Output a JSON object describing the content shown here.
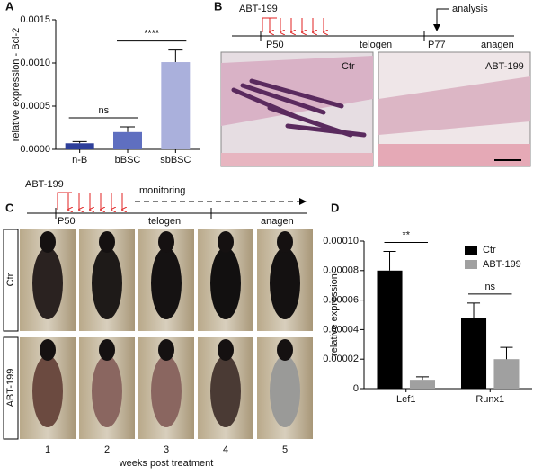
{
  "panel_labels": [
    "A",
    "B",
    "C",
    "D"
  ],
  "chart_data": [
    {
      "type": "bar",
      "ylabel": "relative expression - Bcl-2",
      "categories": [
        "n-B",
        "bBSC",
        "sbBSC"
      ],
      "values": [
        7e-05,
        0.0002,
        0.00101
      ],
      "errors": [
        2e-05,
        6e-05,
        0.00014
      ],
      "colors": [
        "#2e3f9a",
        "#5f6fc0",
        "#aab0dc"
      ],
      "ylim": [
        0,
        0.0015
      ],
      "yticks": [
        {
          "value": 0,
          "label": "0.0000"
        },
        {
          "value": 0.0005,
          "label": "0.0005"
        },
        {
          "value": 0.001,
          "label": "0.0010"
        },
        {
          "value": 0.0015,
          "label": "0.0015"
        }
      ],
      "annotations": [
        {
          "text": "ns",
          "pair": [
            "n-B",
            "bBSC"
          ]
        },
        {
          "text": "****",
          "pair": [
            "bBSC",
            "sbBSC"
          ]
        }
      ]
    },
    {
      "type": "bar",
      "ylabel": "relative expression",
      "categories": [
        "Lef1",
        "Runx1"
      ],
      "series": [
        {
          "name": "Ctr",
          "color": "#000000",
          "values": [
            8e-05,
            4.8e-05
          ],
          "errors": [
            1.3e-05,
            1e-05
          ]
        },
        {
          "name": "ABT-199",
          "color": "#a0a0a0",
          "values": [
            6e-06,
            2e-05
          ],
          "errors": [
            2e-06,
            8e-06
          ]
        }
      ],
      "ylim": [
        0,
        0.0001
      ],
      "yticks": [
        0,
        2e-05,
        4e-05,
        6e-05,
        8e-05,
        {
          "value": 0.0001,
          "label": "0.00010"
        }
      ],
      "legend": "upper right",
      "annotations": [
        {
          "text": "**",
          "category": "Lef1"
        },
        {
          "text": "ns",
          "category": "Runx1"
        }
      ]
    }
  ],
  "panel_b": {
    "treatment": "ABT-199",
    "analysis": "analysis",
    "start": "P50",
    "phase1": "telogen",
    "end": "P77",
    "phase2": "anagen",
    "image_labels": [
      "Ctr",
      "ABT-199"
    ]
  },
  "panel_c": {
    "treatment": "ABT-199",
    "monitoring": "monitoring",
    "start": "P50",
    "phase1": "telogen",
    "phase2": "anagen",
    "row_labels": [
      "Ctr",
      "ABT-199"
    ],
    "columns": [
      "1",
      "2",
      "3",
      "4",
      "5"
    ],
    "xlabel": "weeks post treatment"
  }
}
